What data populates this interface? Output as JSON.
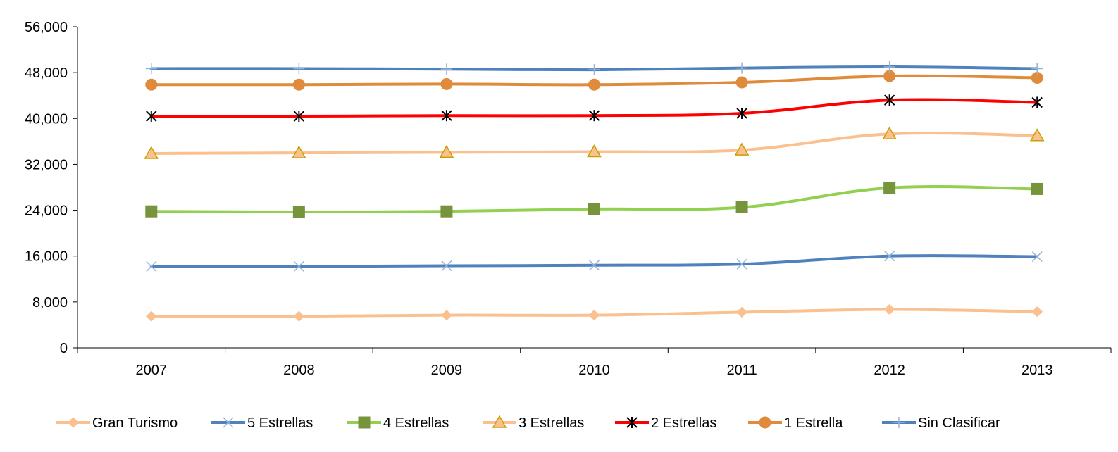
{
  "chart_data": {
    "type": "line",
    "title": "",
    "xlabel": "",
    "ylabel": "",
    "categories": [
      "2007",
      "2008",
      "2009",
      "2010",
      "2011",
      "2012",
      "2013"
    ],
    "ylim": [
      0,
      56000
    ],
    "yticks": [
      0,
      8000,
      16000,
      24000,
      32000,
      40000,
      48000,
      56000
    ],
    "ytick_labels": [
      "0",
      "8,000",
      "16,000",
      "24,000",
      "32,000",
      "40,000",
      "48,000",
      "56,000"
    ],
    "grid": false,
    "smooth": true,
    "legend_position": "bottom",
    "series": [
      {
        "name": "Gran Turismo",
        "color": "#FAC090",
        "marker": "diamond",
        "values": [
          5500,
          5500,
          5700,
          5700,
          6200,
          6700,
          6300
        ]
      },
      {
        "name": "5 Estrellas",
        "color": "#4F81BD",
        "marker": "x",
        "marker_color": "#95B3D7",
        "values": [
          14200,
          14200,
          14300,
          14400,
          14600,
          16000,
          15900
        ]
      },
      {
        "name": "4 Estrellas",
        "color": "#92D050",
        "marker": "square",
        "marker_color": "#77933C",
        "values": [
          23800,
          23700,
          23800,
          24200,
          24500,
          27900,
          27700
        ]
      },
      {
        "name": "3 Estrellas",
        "color": "#FAC090",
        "marker": "triangle",
        "marker_color": "#FAC090",
        "marker_stroke": "#C8A000",
        "values": [
          33900,
          34000,
          34100,
          34200,
          34500,
          37300,
          37000
        ]
      },
      {
        "name": "2 Estrellas",
        "color": "#FF0000",
        "marker": "star",
        "marker_color": "#000000",
        "values": [
          40400,
          40400,
          40500,
          40500,
          40900,
          43200,
          42800
        ]
      },
      {
        "name": "1 Estrella",
        "color": "#E08A3C",
        "marker": "circle",
        "marker_color": "#E08A3C",
        "values": [
          45900,
          45900,
          46000,
          45900,
          46300,
          47400,
          47100
        ]
      },
      {
        "name": "Sin Clasificar",
        "color": "#4F81BD",
        "marker": "plus",
        "marker_color": "#95B3D7",
        "values": [
          48700,
          48700,
          48600,
          48500,
          48800,
          49000,
          48700
        ]
      }
    ]
  }
}
